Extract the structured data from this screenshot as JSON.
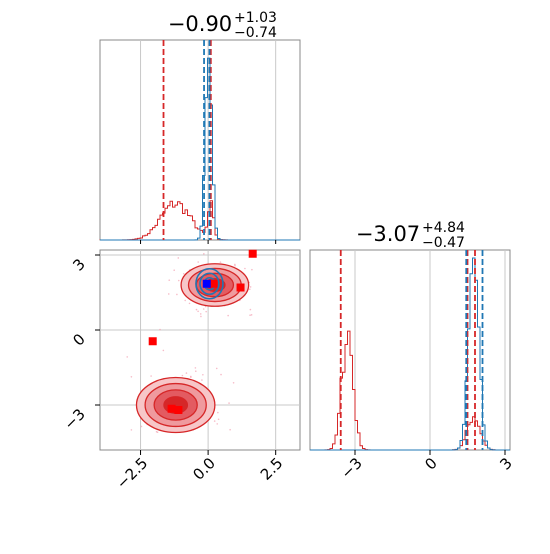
{
  "chart_data": {
    "type": "corner",
    "colors": {
      "red": "#d62728",
      "blue": "#1f77b4",
      "marker_red": "#ff0000",
      "marker_blue": "#0000ff",
      "grid": "#c8c8c8"
    },
    "grid": true,
    "params": [
      {
        "title_base": "−0.90",
        "title_sup": "+1.03",
        "title_sub": "−0.74",
        "range": [
          -4.0,
          3.4
        ]
      },
      {
        "title_base": "−3.07",
        "title_sup": "+4.84",
        "title_sub": "−0.47",
        "range": [
          -4.8,
          3.2
        ]
      }
    ],
    "x_ticks_param0": [
      {
        "v": -2.5,
        "label": "−2.5"
      },
      {
        "v": 0.0,
        "label": "0.0"
      },
      {
        "v": 2.5,
        "label": "2.5"
      }
    ],
    "y_ticks_param1": [
      {
        "v": 3,
        "label": "3"
      },
      {
        "v": 0,
        "label": "0"
      },
      {
        "v": -3,
        "label": "−3"
      }
    ],
    "x_ticks_param1": [
      {
        "v": -3,
        "label": "−3"
      },
      {
        "v": 0,
        "label": "0"
      },
      {
        "v": 3,
        "label": "3"
      }
    ],
    "hist_param0": {
      "red_lines": [
        -1.65,
        0.1
      ],
      "blue_lines": [
        -0.15,
        0.05
      ],
      "red_peaks": [
        {
          "center": -1.2,
          "width": 0.55,
          "height": 0.19
        },
        {
          "center": 0.1,
          "width": 0.1,
          "height": 0.17
        }
      ],
      "blue_peaks": [
        {
          "center": 0.02,
          "width": 0.12,
          "height": 1.0
        }
      ]
    },
    "hist_param1": {
      "red_lines": [
        -3.57,
        1.5,
        1.8
      ],
      "blue_lines": [
        1.45,
        2.1
      ],
      "red_peaks": [
        {
          "center": -3.3,
          "width": 0.22,
          "height": 0.62
        },
        {
          "center": 1.75,
          "width": 0.25,
          "height": 0.18
        }
      ],
      "blue_peaks": [
        {
          "center": 1.75,
          "width": 0.2,
          "height": 1.0
        }
      ]
    },
    "scatter_2d": {
      "red_clusters": [
        {
          "cx": -1.2,
          "cy": -3.0,
          "rx": 1.45,
          "ry": 1.1
        },
        {
          "cx": 0.25,
          "cy": 1.8,
          "rx": 1.25,
          "ry": 0.85
        }
      ],
      "blue_clusters": [
        {
          "cx": 0.05,
          "cy": 1.85,
          "rx": 0.5,
          "ry": 0.6
        }
      ],
      "red_squares": [
        [
          1.65,
          3.05
        ],
        [
          1.2,
          1.7
        ],
        [
          -2.05,
          -0.45
        ],
        [
          -1.35,
          -3.15
        ],
        [
          -1.1,
          -3.2
        ],
        [
          0.2,
          1.85
        ]
      ],
      "blue_squares": [
        [
          -0.05,
          1.85
        ]
      ]
    }
  }
}
